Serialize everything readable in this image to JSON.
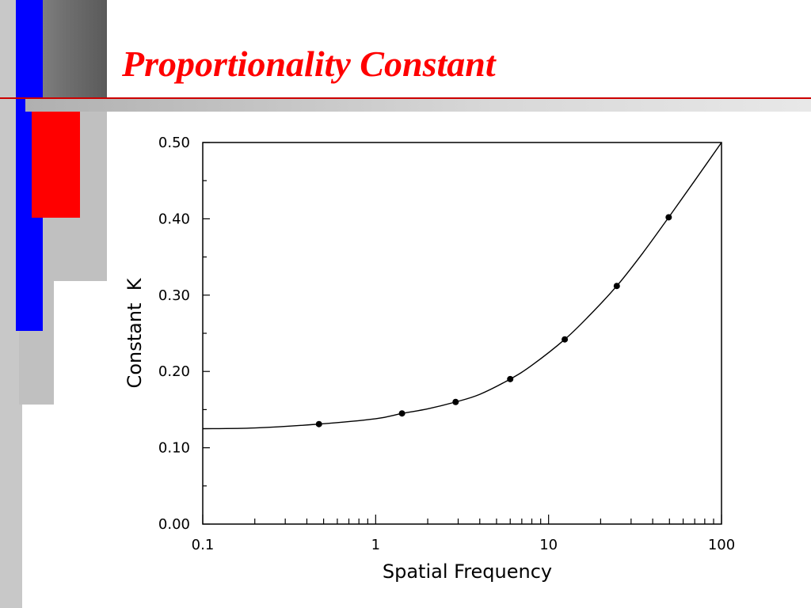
{
  "slide": {
    "title": "Proportionality Constant",
    "colors": {
      "title": "#ff0000",
      "accent_blue": "#0000ff",
      "accent_red": "#ff0000",
      "rule": "#cc0000",
      "gray_dark": "#7a7a7a",
      "gray_light": "#c0c0c0"
    }
  },
  "chart_data": {
    "type": "scatter",
    "xlabel": "Spatial Frequency",
    "ylabel": "Constant  K",
    "x_scale": "log",
    "xlim": [
      0.1,
      100
    ],
    "ylim": [
      0.0,
      0.5
    ],
    "x_ticks": [
      "0.1",
      "1",
      "10",
      "100"
    ],
    "y_ticks": [
      "0.00",
      "0.10",
      "0.20",
      "0.30",
      "0.40",
      "0.50"
    ],
    "grid": false,
    "legend": "none",
    "series": [
      {
        "kind": "points",
        "x": [
          0.47,
          1.42,
          2.9,
          6.0,
          12.4,
          24.8,
          49.5
        ],
        "y": [
          0.131,
          0.145,
          0.16,
          0.19,
          0.242,
          0.312,
          0.402
        ]
      },
      {
        "kind": "fit-curve",
        "x": [
          0.1,
          0.2,
          0.47,
          1.0,
          1.42,
          2.0,
          2.9,
          4.0,
          6.0,
          8.0,
          12.4,
          17.0,
          24.8,
          35.0,
          49.5,
          70.0,
          100.0
        ],
        "y": [
          0.125,
          0.126,
          0.131,
          0.138,
          0.145,
          0.151,
          0.16,
          0.17,
          0.19,
          0.208,
          0.242,
          0.272,
          0.312,
          0.355,
          0.402,
          0.45,
          0.5
        ]
      }
    ]
  }
}
